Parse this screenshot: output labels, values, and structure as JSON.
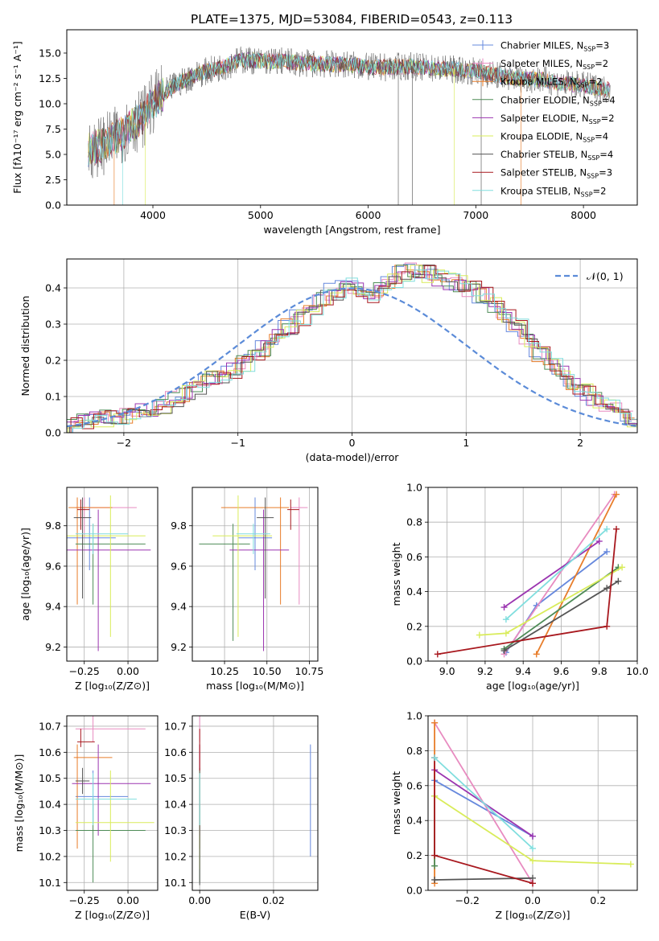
{
  "figure": {
    "title": "PLATE=1375, MJD=53084, FIBERID=0543, z=0.113",
    "models": [
      {
        "label": "Chabrier MILES, N",
        "sub": "SSP",
        "nssp": "=3",
        "color": "#6688dd"
      },
      {
        "label": "Salpeter MILES, N",
        "sub": "SSP",
        "nssp": "=2",
        "color": "#e88bc0"
      },
      {
        "label": "Kroupa MILES, N",
        "sub": "SSP",
        "nssp": "=2",
        "color": "#e87d2a"
      },
      {
        "label": "Chabrier ELODIE, N",
        "sub": "SSP",
        "nssp": "=4",
        "color": "#4e8c57"
      },
      {
        "label": "Salpeter ELODIE, N",
        "sub": "SSP",
        "nssp": "=2",
        "color": "#9b35b0"
      },
      {
        "label": "Kroupa ELODIE, N",
        "sub": "SSP",
        "nssp": "=4",
        "color": "#d9ec5a"
      },
      {
        "label": "Chabrier STELIB, N",
        "sub": "SSP",
        "nssp": "=4",
        "color": "#555555"
      },
      {
        "label": "Salpeter STELIB, N",
        "sub": "SSP",
        "nssp": "=3",
        "color": "#a8181e"
      },
      {
        "label": "Kroupa STELIB, N",
        "sub": "SSP",
        "nssp": "=2",
        "color": "#80dede"
      }
    ]
  },
  "chart_data": [
    {
      "id": "spectrum",
      "type": "line",
      "xlabel": "wavelength [Angstrom, rest frame]",
      "ylabel": "Flux [fλ10⁻¹⁷ erg cm⁻² s⁻¹ A⁻¹]",
      "xlim": [
        3200,
        8500
      ],
      "ylim": [
        0,
        17.3
      ],
      "xticks": [
        4000,
        5000,
        6000,
        7000,
        8000
      ],
      "yticks": [
        0.0,
        2.5,
        5.0,
        7.5,
        10.0,
        12.5,
        15.0
      ],
      "grid": false,
      "legend_position": "right",
      "continuum": {
        "x": [
          3400,
          3500,
          3600,
          3700,
          3800,
          3900,
          4000,
          4100,
          4200,
          4300,
          4400,
          4500,
          4600,
          4700,
          4800,
          4900,
          5000,
          5200,
          5400,
          5600,
          5800,
          6000,
          6200,
          6400,
          6600,
          6800,
          7000,
          7200,
          7400,
          7600,
          7800,
          8000,
          8200
        ],
        "y": [
          5.5,
          5.8,
          6.3,
          7.0,
          7.8,
          8.6,
          10.0,
          11.0,
          11.8,
          12.3,
          12.9,
          13.2,
          13.5,
          13.8,
          14.3,
          14.3,
          14.2,
          14.2,
          14.0,
          13.9,
          13.9,
          13.6,
          13.6,
          13.7,
          13.5,
          13.4,
          13.2,
          12.8,
          12.5,
          12.4,
          12.0,
          11.8,
          11.4
        ]
      }
    },
    {
      "id": "residuals",
      "type": "bar",
      "xlabel": "(data-model)/error",
      "ylabel": "Normed distribution",
      "xlim": [
        -2.5,
        2.5
      ],
      "ylim": [
        0,
        0.48
      ],
      "xticks": [
        -2,
        -1,
        0,
        1,
        2
      ],
      "yticks": [
        0.0,
        0.1,
        0.2,
        0.3,
        0.4
      ],
      "grid": true,
      "legend": "𝒩(0, 1)",
      "legend_position": "top-right",
      "bin_edges_start": -2.5,
      "bin_width": 0.1,
      "histogram": [
        0.025,
        0.03,
        0.035,
        0.04,
        0.04,
        0.045,
        0.055,
        0.065,
        0.075,
        0.09,
        0.11,
        0.13,
        0.15,
        0.16,
        0.17,
        0.19,
        0.21,
        0.23,
        0.26,
        0.29,
        0.32,
        0.35,
        0.37,
        0.39,
        0.41,
        0.4,
        0.38,
        0.39,
        0.42,
        0.44,
        0.45,
        0.44,
        0.43,
        0.42,
        0.41,
        0.4,
        0.38,
        0.35,
        0.32,
        0.29,
        0.25,
        0.22,
        0.19,
        0.16,
        0.13,
        0.11,
        0.09,
        0.07,
        0.06,
        0.04
      ]
    },
    {
      "id": "age-vs-z",
      "type": "scatter",
      "xlabel": "Z [log₁₀(Z/Z⊙)]",
      "ylabel": "age  [log₁₀(age/yr)]",
      "xlim": [
        -0.35,
        0.17
      ],
      "ylim": [
        9.13,
        9.99
      ],
      "xticks": [
        -0.25,
        0.0
      ],
      "yticks": [
        9.2,
        9.4,
        9.6,
        9.8
      ],
      "grid": true,
      "points": [
        {
          "x": -0.22,
          "y": 9.74,
          "xerr": [
            0.27,
            0.15
          ],
          "yerr": [
            0.16,
            0.2
          ],
          "m": 0
        },
        {
          "x": -0.25,
          "y": 9.89,
          "xerr": [
            0.05,
            0.3
          ],
          "yerr": [
            0.15,
            0.05
          ],
          "m": 1
        },
        {
          "x": -0.29,
          "y": 9.89,
          "xerr": [
            0.05,
            0.2
          ],
          "yerr": [
            0.48,
            0.05
          ],
          "m": 2
        },
        {
          "x": -0.2,
          "y": 9.71,
          "xerr": [
            0.1,
            0.3
          ],
          "yerr": [
            0.3,
            0.1
          ],
          "m": 3
        },
        {
          "x": -0.17,
          "y": 9.68,
          "xerr": [
            0.2,
            0.3
          ],
          "yerr": [
            0.5,
            0.2
          ],
          "m": 4
        },
        {
          "x": -0.1,
          "y": 9.75,
          "xerr": [
            0.25,
            0.2
          ],
          "yerr": [
            0.5,
            0.2
          ],
          "m": 5
        },
        {
          "x": -0.26,
          "y": 9.84,
          "xerr": [
            0.05,
            0.05
          ],
          "yerr": [
            0.4,
            0.1
          ],
          "m": 6
        },
        {
          "x": -0.27,
          "y": 9.88,
          "xerr": [
            0.02,
            0.05
          ],
          "yerr": [
            0.1,
            0.05
          ],
          "m": 7
        },
        {
          "x": -0.2,
          "y": 9.76,
          "xerr": [
            0.1,
            0.2
          ],
          "yerr": [
            0.1,
            0.05
          ],
          "m": 8
        }
      ]
    },
    {
      "id": "age-vs-mass",
      "type": "scatter",
      "xlabel": "mass [log₁₀(M/M⊙)]",
      "ylabel": "",
      "xlim": [
        10.06,
        10.8
      ],
      "ylim": [
        9.13,
        9.99
      ],
      "xticks": [
        10.25,
        10.5,
        10.75
      ],
      "yticks": [
        9.2,
        9.4,
        9.6,
        9.8
      ],
      "grid": true,
      "points": [
        {
          "x": 10.43,
          "y": 9.74,
          "xerr": [
            0.1,
            0.1
          ],
          "yerr": [
            0.16,
            0.2
          ],
          "m": 0
        },
        {
          "x": 10.69,
          "y": 9.89,
          "xerr": [
            0.05,
            0.05
          ],
          "yerr": [
            0.48,
            0.05
          ],
          "m": 1
        },
        {
          "x": 10.58,
          "y": 9.89,
          "xerr": [
            0.35,
            0.05
          ],
          "yerr": [
            0.48,
            0.05
          ],
          "m": 2
        },
        {
          "x": 10.3,
          "y": 9.71,
          "xerr": [
            0.2,
            0.1
          ],
          "yerr": [
            0.48,
            0.1
          ],
          "m": 3
        },
        {
          "x": 10.48,
          "y": 9.68,
          "xerr": [
            0.2,
            0.15
          ],
          "yerr": [
            0.5,
            0.2
          ],
          "m": 4
        },
        {
          "x": 10.33,
          "y": 9.75,
          "xerr": [
            0.15,
            0.2
          ],
          "yerr": [
            0.5,
            0.2
          ],
          "m": 5
        },
        {
          "x": 10.49,
          "y": 9.84,
          "xerr": [
            0.05,
            0.05
          ],
          "yerr": [
            0.4,
            0.1
          ],
          "m": 6
        },
        {
          "x": 10.64,
          "y": 9.88,
          "xerr": [
            0.02,
            0.05
          ],
          "yerr": [
            0.1,
            0.05
          ],
          "m": 7
        },
        {
          "x": 10.42,
          "y": 9.76,
          "xerr": [
            0.1,
            0.1
          ],
          "yerr": [
            0.1,
            0.05
          ],
          "m": 8
        }
      ]
    },
    {
      "id": "weight-vs-age",
      "type": "line",
      "xlabel": "age  [log₁₀(age/yr)]",
      "ylabel": "mass weight",
      "xlim": [
        8.9,
        10.0
      ],
      "ylim": [
        0,
        1.0
      ],
      "xticks": [
        9.0,
        9.2,
        9.4,
        9.6,
        9.8,
        10.0
      ],
      "yticks": [
        0.0,
        0.2,
        0.4,
        0.6,
        0.8,
        1.0
      ],
      "grid": true,
      "series": [
        {
          "m": 0,
          "x": [
            9.31,
            9.47,
            9.84
          ],
          "y": [
            0.05,
            0.32,
            0.63
          ]
        },
        {
          "m": 1,
          "x": [
            9.3,
            9.88
          ],
          "y": [
            0.04,
            0.96
          ]
        },
        {
          "m": 2,
          "x": [
            9.47,
            9.89
          ],
          "y": [
            0.04,
            0.96
          ]
        },
        {
          "m": 3,
          "x": [
            9.3,
            9.9
          ],
          "y": [
            0.07,
            0.54
          ]
        },
        {
          "m": 4,
          "x": [
            9.3,
            9.8
          ],
          "y": [
            0.31,
            0.69
          ]
        },
        {
          "m": 5,
          "x": [
            9.17,
            9.31,
            9.92
          ],
          "y": [
            0.15,
            0.16,
            0.54
          ]
        },
        {
          "m": 6,
          "x": [
            9.3,
            9.84,
            9.9
          ],
          "y": [
            0.06,
            0.42,
            0.46
          ]
        },
        {
          "m": 7,
          "x": [
            8.95,
            9.84,
            9.89
          ],
          "y": [
            0.04,
            0.2,
            0.76
          ]
        },
        {
          "m": 8,
          "x": [
            9.31,
            9.84
          ],
          "y": [
            0.24,
            0.76
          ]
        }
      ]
    },
    {
      "id": "mass-vs-z",
      "type": "scatter",
      "xlabel": "Z [log₁₀(Z/Z⊙)]",
      "ylabel": "mass [log₁₀(M/M⊙)]",
      "xlim": [
        -0.35,
        0.17
      ],
      "ylim": [
        10.07,
        10.74
      ],
      "xticks": [
        -0.25,
        0.0
      ],
      "yticks": [
        10.1,
        10.2,
        10.3,
        10.4,
        10.5,
        10.6,
        10.7
      ],
      "grid": true,
      "points": [
        {
          "x": -0.2,
          "y": 10.43,
          "xerr": [
            0.1,
            0.2
          ],
          "yerr": [
            0.1,
            0.1
          ],
          "m": 0
        },
        {
          "x": -0.2,
          "y": 10.69,
          "xerr": [
            0.1,
            0.3
          ],
          "yerr": [
            0.05,
            0.05
          ],
          "m": 1
        },
        {
          "x": -0.29,
          "y": 10.58,
          "xerr": [
            0.02,
            0.2
          ],
          "yerr": [
            0.35,
            0.05
          ],
          "m": 2
        },
        {
          "x": -0.2,
          "y": 10.3,
          "xerr": [
            0.1,
            0.3
          ],
          "yerr": [
            0.2,
            0.1
          ],
          "m": 3
        },
        {
          "x": -0.17,
          "y": 10.48,
          "xerr": [
            0.15,
            0.3
          ],
          "yerr": [
            0.2,
            0.15
          ],
          "m": 4
        },
        {
          "x": -0.1,
          "y": 10.33,
          "xerr": [
            0.2,
            0.25
          ],
          "yerr": [
            0.15,
            0.2
          ],
          "m": 5
        },
        {
          "x": -0.26,
          "y": 10.49,
          "xerr": [
            0.04,
            0.04
          ],
          "yerr": [
            0.05,
            0.05
          ],
          "m": 6
        },
        {
          "x": -0.27,
          "y": 10.64,
          "xerr": [
            0.02,
            0.08
          ],
          "yerr": [
            0.02,
            0.05
          ],
          "m": 7
        },
        {
          "x": -0.2,
          "y": 10.42,
          "xerr": [
            0.1,
            0.25
          ],
          "yerr": [
            0.1,
            0.1
          ],
          "m": 8
        }
      ]
    },
    {
      "id": "mass-vs-ebv",
      "type": "scatter",
      "xlabel": "E(B-V)",
      "ylabel": "",
      "xlim": [
        -0.002,
        0.032
      ],
      "ylim": [
        10.07,
        10.74
      ],
      "xticks": [
        0.0,
        0.02
      ],
      "yticks": [
        10.1,
        10.2,
        10.3,
        10.4,
        10.5,
        10.6,
        10.7
      ],
      "grid": true,
      "points": [
        {
          "x": 0.03,
          "y": 10.43,
          "xerr": [
            0,
            0
          ],
          "yerr": [
            0.23,
            0.2
          ],
          "m": 0
        },
        {
          "x": 0.0,
          "y": 10.69,
          "xerr": [
            0,
            0
          ],
          "yerr": [
            0.05,
            0.05
          ],
          "m": 1
        },
        {
          "x": 0.0,
          "y": 10.58,
          "xerr": [
            0,
            0
          ],
          "yerr": [
            0.35,
            0.05
          ],
          "m": 2
        },
        {
          "x": 0.0,
          "y": 10.3,
          "xerr": [
            0,
            0
          ],
          "yerr": [
            0.2,
            0.1
          ],
          "m": 3
        },
        {
          "x": 0.0,
          "y": 10.48,
          "xerr": [
            0,
            0
          ],
          "yerr": [
            0.2,
            0.15
          ],
          "m": 4
        },
        {
          "x": 0.0,
          "y": 10.33,
          "xerr": [
            0,
            0
          ],
          "yerr": [
            0.18,
            0.2
          ],
          "m": 5
        },
        {
          "x": 0.0,
          "y": 10.49,
          "xerr": [
            0,
            0
          ],
          "yerr": [
            0.4,
            0.05
          ],
          "m": 6
        },
        {
          "x": 0.0,
          "y": 10.64,
          "xerr": [
            0,
            0
          ],
          "yerr": [
            0.11,
            0.05
          ],
          "m": 7
        },
        {
          "x": 0.0,
          "y": 10.42,
          "xerr": [
            0,
            0
          ],
          "yerr": [
            0.1,
            0.1
          ],
          "m": 8
        }
      ]
    },
    {
      "id": "weight-vs-z",
      "type": "line",
      "xlabel": "Z [log₁₀(Z/Z⊙)]",
      "ylabel": "mass weight",
      "xlim": [
        -0.32,
        0.32
      ],
      "ylim": [
        0,
        1.0
      ],
      "xticks": [
        -0.2,
        0.0,
        0.2
      ],
      "yticks": [
        0.0,
        0.2,
        0.4,
        0.6,
        0.8,
        1.0
      ],
      "grid": true,
      "series": [
        {
          "m": 0,
          "x": [
            -0.3,
            0.0
          ],
          "y": [
            0.63,
            0.31
          ]
        },
        {
          "m": 1,
          "x": [
            -0.3,
            0.0
          ],
          "y": [
            0.96,
            0.04
          ]
        },
        {
          "m": 2,
          "x": [
            -0.3,
            -0.3
          ],
          "y": [
            0.96,
            0.04
          ]
        },
        {
          "m": 3,
          "x": [
            -0.3,
            -0.3
          ],
          "y": [
            0.54,
            0.14
          ]
        },
        {
          "m": 4,
          "x": [
            -0.3,
            0.0
          ],
          "y": [
            0.69,
            0.31
          ]
        },
        {
          "m": 5,
          "x": [
            -0.3,
            0.0,
            0.3
          ],
          "y": [
            0.54,
            0.17,
            0.15
          ]
        },
        {
          "m": 6,
          "x": [
            -0.3,
            0.0
          ],
          "y": [
            0.06,
            0.07
          ]
        },
        {
          "m": 7,
          "x": [
            -0.3,
            -0.3,
            0.0
          ],
          "y": [
            0.76,
            0.2,
            0.04
          ]
        },
        {
          "m": 8,
          "x": [
            -0.3,
            0.0
          ],
          "y": [
            0.76,
            0.24
          ]
        }
      ]
    }
  ]
}
